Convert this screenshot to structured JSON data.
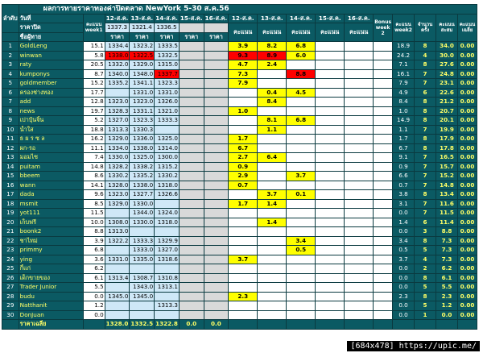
{
  "title": "ผลการทายราคาทองค่าปิดตลาด NewYork 5-30 ส.ค.56",
  "header": {
    "col_index": "ลำดับ",
    "day_label": "วันที่",
    "close_label": "ราคาปิด",
    "member_label": "ชื่อผู้ทาย",
    "week1_label": "คะแนน week1",
    "dates": [
      "12-ส.ค.",
      "13-ส.ค.",
      "14-ส.ค.",
      "15-ส.ค.",
      "16-ส.ค."
    ],
    "close_prices": [
      "1337.3",
      "1321.4",
      "1336.5",
      "",
      ""
    ],
    "price_label": "ราคา",
    "score_label": "คะแนน",
    "bonus_label": "Bonus week 2",
    "week2_label": "คะแนน week2",
    "count_label": "จำนวนครั้ง",
    "total_label": "คะแนนสะสม",
    "avg_label": "คะแนนเฉลี่ย"
  },
  "rows": [
    {
      "no": "1",
      "name": "GoldLeng",
      "w1": "15.1",
      "p": [
        "1334.4",
        "1323.2",
        "1333.5",
        "",
        ""
      ],
      "s": [
        "3.9",
        "8.2",
        "6.8",
        "",
        ""
      ],
      "w2": "18.9",
      "n": "8",
      "t": "34.0",
      "a": "0.00"
    },
    {
      "no": "2",
      "name": "winwan",
      "w1": "5.8",
      "p": [
        "1338.0",
        "1322.5",
        "1332.5",
        "",
        ""
      ],
      "s": [
        "9.3",
        "8.9",
        "6.0",
        "",
        ""
      ],
      "w2": "24.2",
      "n": "4",
      "t": "30.0",
      "a": "0.00"
    },
    {
      "no": "3",
      "name": "raty",
      "w1": "20.5",
      "p": [
        "1332.0",
        "1329.0",
        "1315.0",
        "",
        ""
      ],
      "s": [
        "4.7",
        "2.4",
        "",
        "",
        ""
      ],
      "w2": "7.1",
      "n": "8",
      "t": "27.6",
      "a": "0.00"
    },
    {
      "no": "4",
      "name": "kumponys",
      "w1": "8.7",
      "p": [
        "1340.0",
        "1348.0",
        "1337.7",
        "",
        ""
      ],
      "s": [
        "7.3",
        "",
        "8.8",
        "",
        ""
      ],
      "w2": "16.1",
      "n": "7",
      "t": "24.8",
      "a": "0.00"
    },
    {
      "no": "5",
      "name": "goldmember",
      "w1": "15.2",
      "p": [
        "1335.2",
        "1341.1",
        "1323.3",
        "",
        ""
      ],
      "s": [
        "7.9",
        "",
        "",
        "",
        ""
      ],
      "w2": "7.9",
      "n": "7",
      "t": "23.1",
      "a": "0.00"
    },
    {
      "no": "6",
      "name": "ครองช่างทอง",
      "w1": "17.7",
      "p": [
        "",
        "1331.0",
        "1331.0",
        "",
        ""
      ],
      "s": [
        "",
        "0.4",
        "4.5",
        "",
        ""
      ],
      "w2": "4.9",
      "n": "6",
      "t": "22.6",
      "a": "0.00"
    },
    {
      "no": "7",
      "name": "add",
      "w1": "12.8",
      "p": [
        "1323.0",
        "1323.0",
        "1326.0",
        "",
        ""
      ],
      "s": [
        "",
        "8.4",
        "",
        "",
        ""
      ],
      "w2": "8.4",
      "n": "8",
      "t": "21.2",
      "a": "0.00"
    },
    {
      "no": "8",
      "name": "news",
      "w1": "19.7",
      "p": [
        "1328.3",
        "1331.1",
        "1321.0",
        "",
        ""
      ],
      "s": [
        "1.0",
        "",
        "",
        "",
        ""
      ],
      "w2": "1.0",
      "n": "8",
      "t": "20.7",
      "a": "0.00"
    },
    {
      "no": "9",
      "name": "เปาบุ้นจิ้น",
      "w1": "5.2",
      "p": [
        "1327.0",
        "1323.3",
        "1333.3",
        "",
        ""
      ],
      "s": [
        "",
        "8.1",
        "6.8",
        "",
        ""
      ],
      "w2": "14.9",
      "n": "8",
      "t": "20.1",
      "a": "0.00"
    },
    {
      "no": "10",
      "name": "น้ำใส",
      "w1": "18.8",
      "p": [
        "1313.3",
        "1330.3",
        "",
        "",
        ""
      ],
      "s": [
        "",
        "1.1",
        "",
        "",
        ""
      ],
      "w2": "1.1",
      "n": "7",
      "t": "19.9",
      "a": "0.00"
    },
    {
      "no": "11",
      "name": "ธ ผ ร ซ ล",
      "w1": "16.2",
      "p": [
        "1329.0",
        "1336.0",
        "1325.0",
        "",
        ""
      ],
      "s": [
        "1.7",
        "",
        "",
        "",
        ""
      ],
      "w2": "1.7",
      "n": "8",
      "t": "17.9",
      "a": "0.00"
    },
    {
      "no": "12",
      "name": "ผก-รอ",
      "w1": "11.1",
      "p": [
        "1334.0",
        "1338.0",
        "1314.0",
        "",
        ""
      ],
      "s": [
        "6.7",
        "",
        "",
        "",
        ""
      ],
      "w2": "6.7",
      "n": "8",
      "t": "17.8",
      "a": "0.00"
    },
    {
      "no": "13",
      "name": "มอมไซ",
      "w1": "7.4",
      "p": [
        "1330.0",
        "1325.0",
        "1300.0",
        "",
        ""
      ],
      "s": [
        "2.7",
        "6.4",
        "",
        "",
        ""
      ],
      "w2": "9.1",
      "n": "7",
      "t": "16.5",
      "a": "0.00"
    },
    {
      "no": "14",
      "name": "puitam",
      "w1": "14.8",
      "p": [
        "1328.2",
        "1338.2",
        "1315.2",
        "",
        ""
      ],
      "s": [
        "0.9",
        "",
        "",
        "",
        ""
      ],
      "w2": "0.9",
      "n": "7",
      "t": "15.7",
      "a": "0.00"
    },
    {
      "no": "15",
      "name": "bbeem",
      "w1": "8.6",
      "p": [
        "1330.2",
        "1335.2",
        "1330.2",
        "",
        ""
      ],
      "s": [
        "2.9",
        "",
        "3.7",
        "",
        ""
      ],
      "w2": "6.6",
      "n": "7",
      "t": "15.2",
      "a": "0.00"
    },
    {
      "no": "16",
      "name": "wann",
      "w1": "14.1",
      "p": [
        "1328.0",
        "1338.0",
        "1318.0",
        "",
        ""
      ],
      "s": [
        "0.7",
        "",
        "",
        "",
        ""
      ],
      "w2": "0.7",
      "n": "7",
      "t": "14.8",
      "a": "0.00"
    },
    {
      "no": "17",
      "name": "dada",
      "w1": "9.6",
      "p": [
        "1323.0",
        "1327.7",
        "1326.6",
        "",
        ""
      ],
      "s": [
        "",
        "3.7",
        "0.1",
        "",
        ""
      ],
      "w2": "3.8",
      "n": "8",
      "t": "13.4",
      "a": "0.00"
    },
    {
      "no": "18",
      "name": "msmit",
      "w1": "8.5",
      "p": [
        "1329.0",
        "1330.0",
        "",
        "",
        ""
      ],
      "s": [
        "1.7",
        "1.4",
        "",
        "",
        ""
      ],
      "w2": "3.1",
      "n": "7",
      "t": "11.6",
      "a": "0.00"
    },
    {
      "no": "19",
      "name": "yot111",
      "w1": "11.5",
      "p": [
        "",
        "1344.0",
        "1324.0",
        "",
        ""
      ],
      "s": [
        "",
        "",
        "",
        "",
        ""
      ],
      "w2": "0.0",
      "n": "7",
      "t": "11.5",
      "a": "0.00"
    },
    {
      "no": "20",
      "name": "เก็บฟรี",
      "w1": "10.0",
      "p": [
        "1308.0",
        "1330.0",
        "1318.0",
        "",
        ""
      ],
      "s": [
        "",
        "1.4",
        "",
        "",
        ""
      ],
      "w2": "1.4",
      "n": "6",
      "t": "11.4",
      "a": "0.00"
    },
    {
      "no": "21",
      "name": "boonk2",
      "w1": "8.8",
      "p": [
        "1313.0",
        "",
        "",
        "",
        ""
      ],
      "s": [
        "",
        "",
        "",
        "",
        ""
      ],
      "w2": "0.0",
      "n": "3",
      "t": "8.8",
      "a": "0.00"
    },
    {
      "no": "22",
      "name": "ชาไทม่",
      "w1": "3.9",
      "p": [
        "1322.2",
        "1333.3",
        "1329.9",
        "",
        ""
      ],
      "s": [
        "",
        "",
        "3.4",
        "",
        ""
      ],
      "w2": "3.4",
      "n": "8",
      "t": "7.3",
      "a": "0.00"
    },
    {
      "no": "23",
      "name": "primmy",
      "w1": "6.8",
      "p": [
        "",
        "1333.0",
        "1327.0",
        "",
        ""
      ],
      "s": [
        "",
        "",
        "0.5",
        "",
        ""
      ],
      "w2": "0.5",
      "n": "5",
      "t": "7.3",
      "a": "0.00"
    },
    {
      "no": "24",
      "name": "ying",
      "w1": "3.6",
      "p": [
        "1331.0",
        "1335.0",
        "1318.6",
        "",
        ""
      ],
      "s": [
        "3.7",
        "",
        "",
        "",
        ""
      ],
      "w2": "3.7",
      "n": "4",
      "t": "7.3",
      "a": "0.00"
    },
    {
      "no": "25",
      "name": "กี้แก่",
      "w1": "6.2",
      "p": [
        "",
        "",
        "",
        "",
        ""
      ],
      "s": [
        "",
        "",
        "",
        "",
        ""
      ],
      "w2": "0.0",
      "n": "2",
      "t": "6.2",
      "a": "0.00"
    },
    {
      "no": "26",
      "name": "เด็กขายของ",
      "w1": "6.1",
      "p": [
        "1313.4",
        "1308.7",
        "1310.8",
        "",
        ""
      ],
      "s": [
        "",
        "",
        "",
        "",
        ""
      ],
      "w2": "0.0",
      "n": "8",
      "t": "6.1",
      "a": "0.00"
    },
    {
      "no": "27",
      "name": "Trader Junior",
      "w1": "5.5",
      "p": [
        "",
        "1343.0",
        "1313.1",
        "",
        ""
      ],
      "s": [
        "",
        "",
        "",
        "",
        ""
      ],
      "w2": "0.0",
      "n": "5",
      "t": "5.5",
      "a": "0.00"
    },
    {
      "no": "28",
      "name": "budu",
      "w1": "0.0",
      "p": [
        "1345.0",
        "1345.0",
        "",
        "",
        ""
      ],
      "s": [
        "2.3",
        "",
        "",
        "",
        ""
      ],
      "w2": "2.3",
      "n": "8",
      "t": "2.3",
      "a": "0.00"
    },
    {
      "no": "29",
      "name": "Natthanit",
      "w1": "1.2",
      "p": [
        "",
        "",
        "1313.3",
        "",
        ""
      ],
      "s": [
        "",
        "",
        "",
        "",
        ""
      ],
      "w2": "0.0",
      "n": "5",
      "t": "1.2",
      "a": "0.00"
    },
    {
      "no": "30",
      "name": "DonJuan",
      "w1": "0.0",
      "p": [
        "",
        "",
        "",
        "",
        ""
      ],
      "s": [
        "",
        "",
        "",
        "",
        ""
      ],
      "w2": "0.0",
      "n": "1",
      "t": "0.0",
      "a": "0.00"
    }
  ],
  "footer": {
    "label": "ราคาเฉลี่ย",
    "avgs": [
      "1328.0",
      "1332.5",
      "1322.8",
      "0.0",
      "0.0"
    ]
  },
  "highlights": {
    "red_price": [
      [
        1,
        0
      ],
      [
        1,
        1
      ],
      [
        3,
        2
      ]
    ],
    "red_score": [
      [
        1,
        0
      ],
      [
        1,
        1
      ],
      [
        3,
        2
      ]
    ]
  },
  "watermark": "[684x478] https://upic.me/",
  "colors": {
    "header": "#0b5a63",
    "score": "#ffff00",
    "miss": "#ff0000",
    "price": "#cfe8f7"
  }
}
